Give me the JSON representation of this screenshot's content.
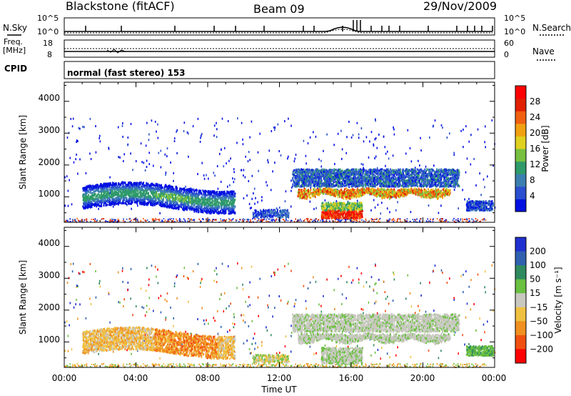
{
  "header": {
    "station": "Blackstone (fitACF)",
    "beam": "Beam 09",
    "date": "29/Nov/2009"
  },
  "top_panel": {
    "left_label": "N.Sky",
    "left_ticks": [
      "10^5",
      "10^0"
    ],
    "right_ticks": [
      "10^5",
      "10^0"
    ],
    "right_label": "N.Search"
  },
  "freq_panel": {
    "left_label_1": "Freq.",
    "left_label_2": "[MHz]",
    "left_ticks": [
      "18",
      "8"
    ],
    "right_ticks": [
      "60",
      "0"
    ],
    "right_label": "Nave"
  },
  "cpid_panel": {
    "left_label": "CPID",
    "text": "normal (fast stereo) 153"
  },
  "colors": {
    "power_scale": [
      "#0010e0",
      "#2a4fd0",
      "#3a7fb0",
      "#2f9a6a",
      "#78c040",
      "#e0d020",
      "#f0a010",
      "#f06010",
      "#e02000",
      "#ff0000"
    ],
    "velocity_scale": [
      "#2030d0",
      "#3060b0",
      "#2f8a60",
      "#6ac040",
      "#c8c8c0",
      "#f0c040",
      "#f09020",
      "#f05010",
      "#ff0000"
    ]
  },
  "chart_data": [
    {
      "type": "heatmap",
      "name": "power-panel",
      "ylabel": "Slant Range [km]",
      "yticks": [
        "1000",
        "2000",
        "3000",
        "4000"
      ],
      "ylim": [
        200,
        4600
      ],
      "xlim": [
        0,
        24
      ],
      "colorbar": {
        "label": "Power [dB]",
        "ticks": [
          "4",
          "8",
          "12",
          "16",
          "20",
          "24",
          "28"
        ],
        "range": [
          0,
          32
        ]
      }
    },
    {
      "type": "heatmap",
      "name": "velocity-panel",
      "ylabel": "Slant Range [km]",
      "yticks": [
        "1000",
        "2000",
        "3000",
        "4000"
      ],
      "ylim": [
        200,
        4600
      ],
      "xlim": [
        0,
        24
      ],
      "xlabel": "Time UT",
      "xticks": [
        "00:00",
        "04:00",
        "08:00",
        "12:00",
        "16:00",
        "20:00",
        "00:00"
      ],
      "colorbar": {
        "label": "Velocity [m s⁻¹]",
        "ticks": [
          "200",
          "100",
          "50",
          "15",
          "−15",
          "−50",
          "−100",
          "−200"
        ]
      }
    }
  ]
}
